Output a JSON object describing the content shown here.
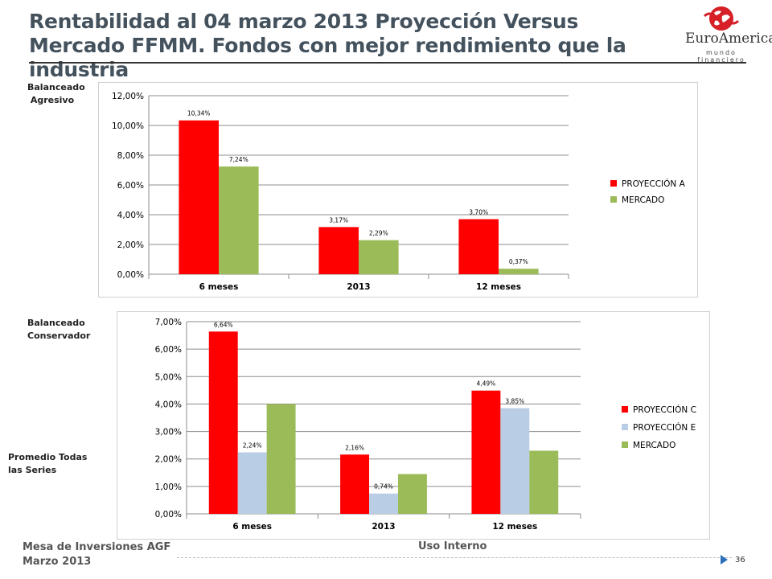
{
  "slide": {
    "title": "Rentabilidad al 04 marzo 2013 Proyección Versus  Mercado FFMM. Fondos con mejor rendimiento que la industria",
    "logo_name": "EuroAmerica",
    "logo_tagline": "mundo financiero",
    "labels": {
      "agresivo": "Balanceado\n Agresivo",
      "conservador": "Balanceado\nConservador",
      "promedio": "Promedio Todas\nlas Series"
    },
    "footer_left_1": "Mesa de Inversiones AGF",
    "footer_left_2": "Marzo 2013",
    "footer_center": "Uso Interno",
    "page_number": "36"
  },
  "colors": {
    "red": "#ff0000",
    "green": "#9bbb59",
    "lightblue": "#b9cde5"
  },
  "chart_data": [
    {
      "type": "bar",
      "categories": [
        "6 meses",
        "2013",
        "12 meses"
      ],
      "series": [
        {
          "name": "PROYECCIÓN A",
          "values": [
            10.34,
            3.17,
            3.7
          ],
          "labels": [
            "10,34%",
            "3,17%",
            "3,70%"
          ],
          "color": "#ff0000"
        },
        {
          "name": "MERCADO",
          "values": [
            7.24,
            2.29,
            0.37
          ],
          "labels": [
            "7,24%",
            "2,29%",
            "0,37%"
          ],
          "color": "#9bbb59"
        }
      ],
      "ylim": [
        0,
        12
      ],
      "yticks": [
        0,
        2,
        4,
        6,
        8,
        10,
        12
      ],
      "ytick_labels": [
        "0,00%",
        "2,00%",
        "4,00%",
        "6,00%",
        "8,00%",
        "10,00%",
        "12,00%"
      ],
      "grid": true,
      "legend": "right"
    },
    {
      "type": "bar",
      "categories": [
        "6 meses",
        "2013",
        "12 meses"
      ],
      "series": [
        {
          "name": "PROYECCIÓN C",
          "values": [
            6.64,
            2.16,
            4.49
          ],
          "labels": [
            "6,64%",
            "2,16%",
            "4,49%"
          ],
          "color": "#ff0000"
        },
        {
          "name": "PROYECCIÓN E",
          "values": [
            2.24,
            0.74,
            3.85
          ],
          "labels": [
            "2,24%",
            "0,74%",
            "3,85%"
          ],
          "color": "#b9cde5"
        },
        {
          "name": "MERCADO",
          "values": [
            4.0,
            1.45,
            2.3
          ],
          "labels": [
            "",
            "",
            ""
          ],
          "color": "#9bbb59"
        }
      ],
      "ylim": [
        0,
        7
      ],
      "yticks": [
        0,
        1,
        2,
        3,
        4,
        5,
        6,
        7
      ],
      "ytick_labels": [
        "0,00%",
        "1,00%",
        "2,00%",
        "3,00%",
        "4,00%",
        "5,00%",
        "6,00%",
        "7,00%"
      ],
      "grid": true,
      "legend": "right"
    }
  ]
}
